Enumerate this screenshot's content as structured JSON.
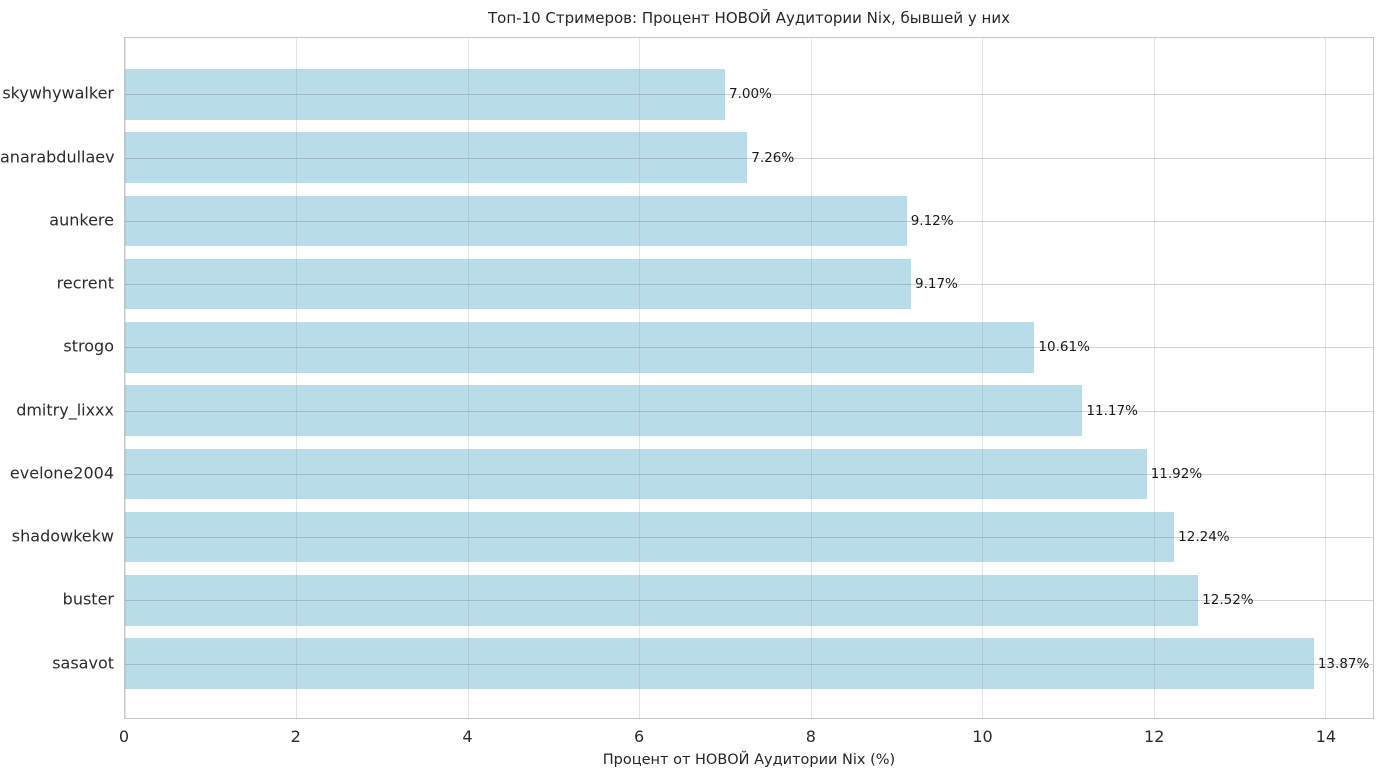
{
  "title": "Топ-10 Стримеров: Процент НОВОЙ Аудитории Nix, бывшей у них",
  "xlabel": "Процент от НОВОЙ Аудитории Nix (%)",
  "chart_data": {
    "type": "bar",
    "orientation": "horizontal",
    "title": "Топ-10 Стримеров: Процент НОВОЙ Аудитории Nix, бывшей у них",
    "xlabel": "Процент от НОВОЙ Аудитории Nix (%)",
    "ylabel": "",
    "categories": [
      "skywhywalker",
      "anarabdullaev",
      "aunkere",
      "recrent",
      "strogo",
      "dmitry_lixxx",
      "evelone2004",
      "shadowkekw",
      "buster",
      "sasavot"
    ],
    "values": [
      7.0,
      7.26,
      9.12,
      9.17,
      10.61,
      11.17,
      11.92,
      12.24,
      12.52,
      13.87
    ],
    "value_labels": [
      "7.00%",
      "7.26%",
      "9.12%",
      "9.17%",
      "10.61%",
      "11.17%",
      "11.92%",
      "12.24%",
      "12.52%",
      "13.87%"
    ],
    "xticks": [
      0,
      2,
      4,
      6,
      8,
      10,
      12,
      14
    ],
    "xlim": [
      0,
      14.56
    ],
    "grid": true,
    "legend_position": "none",
    "bar_color": "#b9dcea",
    "background_color": "#ffffff",
    "spine_color": "#c6c6c6",
    "grid_on": true
  }
}
